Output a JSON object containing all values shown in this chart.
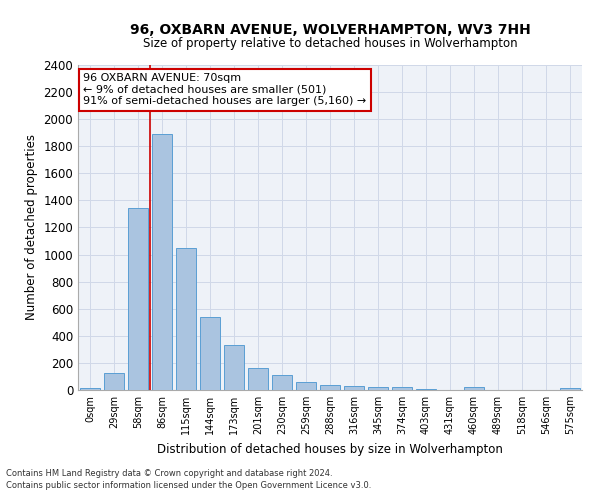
{
  "title": "96, OXBARN AVENUE, WOLVERHAMPTON, WV3 7HH",
  "subtitle": "Size of property relative to detached houses in Wolverhampton",
  "xlabel": "Distribution of detached houses by size in Wolverhampton",
  "ylabel": "Number of detached properties",
  "footer_line1": "Contains HM Land Registry data © Crown copyright and database right 2024.",
  "footer_line2": "Contains public sector information licensed under the Open Government Licence v3.0.",
  "categories": [
    "0sqm",
    "29sqm",
    "58sqm",
    "86sqm",
    "115sqm",
    "144sqm",
    "173sqm",
    "201sqm",
    "230sqm",
    "259sqm",
    "288sqm",
    "316sqm",
    "345sqm",
    "374sqm",
    "403sqm",
    "431sqm",
    "460sqm",
    "489sqm",
    "518sqm",
    "546sqm",
    "575sqm"
  ],
  "values": [
    15,
    125,
    1345,
    1890,
    1045,
    540,
    335,
    165,
    110,
    60,
    40,
    30,
    25,
    20,
    10,
    0,
    20,
    0,
    0,
    0,
    15
  ],
  "bar_color": "#aac4e0",
  "bar_edge_color": "#5a9fd4",
  "ylim": [
    0,
    2400
  ],
  "yticks": [
    0,
    200,
    400,
    600,
    800,
    1000,
    1200,
    1400,
    1600,
    1800,
    2000,
    2200,
    2400
  ],
  "annotation_text": "96 OXBARN AVENUE: 70sqm\n← 9% of detached houses are smaller (501)\n91% of semi-detached houses are larger (5,160) →",
  "annotation_box_color": "#ffffff",
  "annotation_border_color": "#cc0000",
  "vline_color": "#cc0000",
  "grid_color": "#d0d8e8",
  "background_color": "#eef2f8",
  "vline_x": 2.5
}
